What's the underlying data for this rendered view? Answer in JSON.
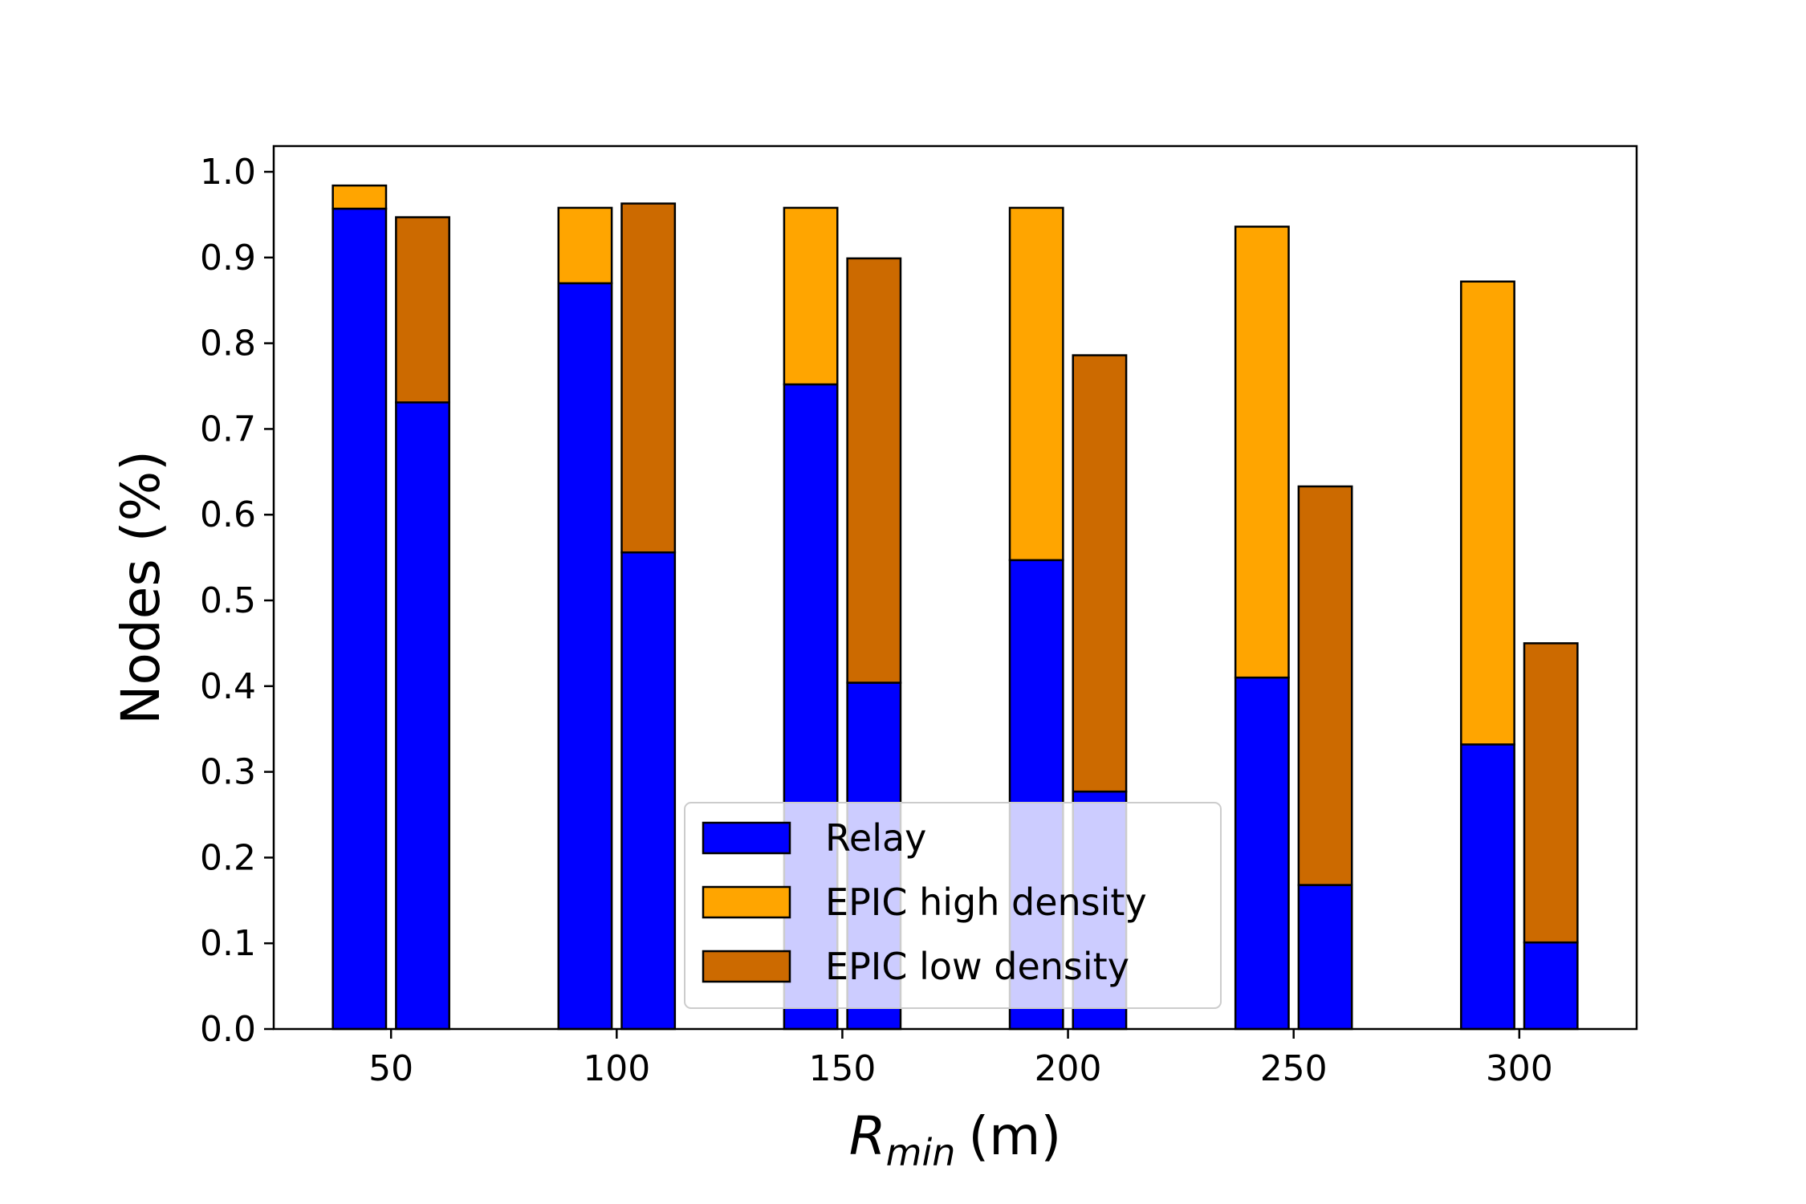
{
  "chart_data": {
    "type": "bar",
    "stacked": true,
    "grouped": true,
    "categories": [
      "50",
      "100",
      "150",
      "200",
      "250",
      "300"
    ],
    "x": [
      50,
      100,
      150,
      200,
      250,
      300
    ],
    "xlabel_main": "R",
    "xlabel_sub": "min",
    "xlabel_unit": "(m)",
    "ylabel": "Nodes (%)",
    "ylim": [
      0,
      1.03
    ],
    "xlim": [
      24,
      326
    ],
    "yticks": [
      "0.0",
      "0.1",
      "0.2",
      "0.3",
      "0.4",
      "0.5",
      "0.6",
      "0.7",
      "0.8",
      "0.9",
      "1.0"
    ],
    "xticks": [
      "50",
      "100",
      "150",
      "200",
      "250",
      "300"
    ],
    "grid": false,
    "legend_position": "lower-center",
    "colors": {
      "relay": "#0000ff",
      "epic_high": "#ffa500",
      "epic_low": "#cc6a00",
      "edge": "#000000"
    },
    "groups": [
      {
        "name": "high density",
        "offset": -7,
        "relay": [
          0.957,
          0.87,
          0.752,
          0.547,
          0.41,
          0.332
        ],
        "epic": [
          0.027,
          0.088,
          0.206,
          0.411,
          0.526,
          0.54
        ],
        "epic_color_key": "epic_high"
      },
      {
        "name": "low density",
        "offset": 7,
        "relay": [
          0.731,
          0.556,
          0.404,
          0.277,
          0.168,
          0.101
        ],
        "epic": [
          0.216,
          0.407,
          0.495,
          0.509,
          0.465,
          0.349
        ],
        "epic_color_key": "epic_low"
      }
    ],
    "legend": [
      {
        "label": "Relay",
        "color_key": "relay"
      },
      {
        "label": "EPIC high density",
        "color_key": "epic_high"
      },
      {
        "label": "EPIC low density",
        "color_key": "epic_low"
      }
    ]
  }
}
